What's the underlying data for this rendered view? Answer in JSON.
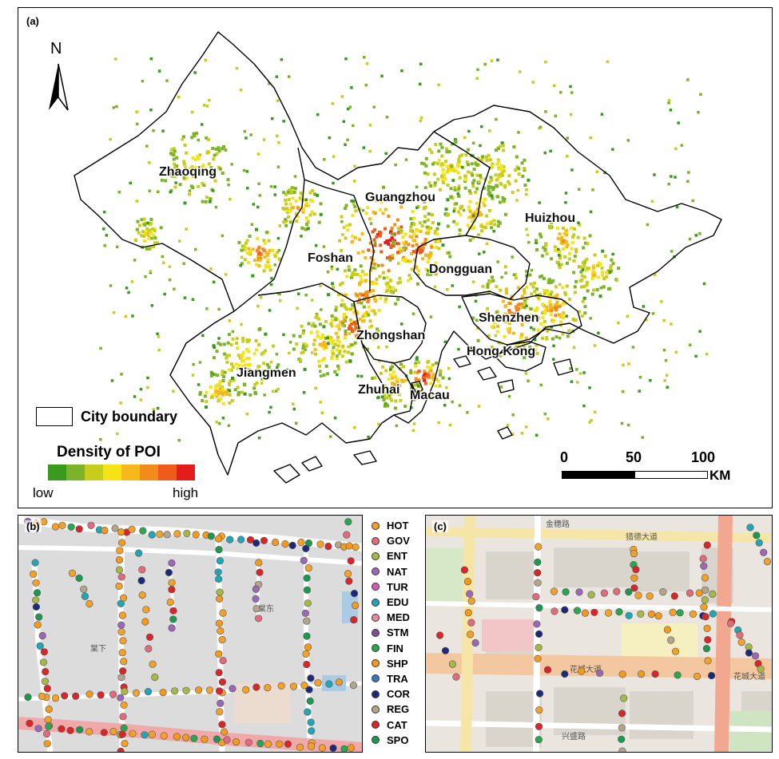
{
  "panel_a": {
    "tag": "(a)",
    "north_label": "N",
    "cities": [
      {
        "name": "Zhaoqing"
      },
      {
        "name": "Guangzhou"
      },
      {
        "name": "Huizhou"
      },
      {
        "name": "Foshan"
      },
      {
        "name": "Dongguan"
      },
      {
        "name": "Shenzhen"
      },
      {
        "name": "Zhongshan"
      },
      {
        "name": "Hong Kong"
      },
      {
        "name": "Jiangmen"
      },
      {
        "name": "Zhuhai"
      },
      {
        "name": "Macau"
      }
    ],
    "legend": {
      "boundary_label": "City boundary",
      "density_title": "Density of POI",
      "low_label": "low",
      "high_label": "high",
      "ramp_colors": [
        "#3a9a1e",
        "#7bb428",
        "#c8cc1c",
        "#f4e415",
        "#f6b81a",
        "#f28a1c",
        "#ef5b1b",
        "#e51c1c"
      ]
    },
    "scalebar": {
      "ticks": [
        "0",
        "50",
        "100"
      ],
      "unit": "KM"
    }
  },
  "panel_b": {
    "tag": "(b)",
    "place_labels": [
      "棠下",
      "棠东"
    ]
  },
  "panel_c": {
    "tag": "(c)",
    "road_labels": [
      "金穗路",
      "猎德大道",
      "花城大道",
      "兴盛路",
      "花城大道"
    ]
  },
  "poi_legend": [
    {
      "code": "HOT",
      "color": "#f2a12b"
    },
    {
      "code": "GOV",
      "color": "#e06b7c"
    },
    {
      "code": "ENT",
      "color": "#a7b847"
    },
    {
      "code": "NAT",
      "color": "#9b69b3"
    },
    {
      "code": "TUR",
      "color": "#d857b4"
    },
    {
      "code": "EDU",
      "color": "#22a6b6"
    },
    {
      "code": "MED",
      "color": "#e98aa0"
    },
    {
      "code": "STM",
      "color": "#7b4f94"
    },
    {
      "code": "FIN",
      "color": "#2aa64f"
    },
    {
      "code": "SHP",
      "color": "#f29a1e"
    },
    {
      "code": "TRA",
      "color": "#3678b8"
    },
    {
      "code": "COR",
      "color": "#1e2a78"
    },
    {
      "code": "REG",
      "color": "#b3a58a"
    },
    {
      "code": "CAT",
      "color": "#d8262b"
    },
    {
      "code": "SPO",
      "color": "#1a9a50"
    }
  ]
}
